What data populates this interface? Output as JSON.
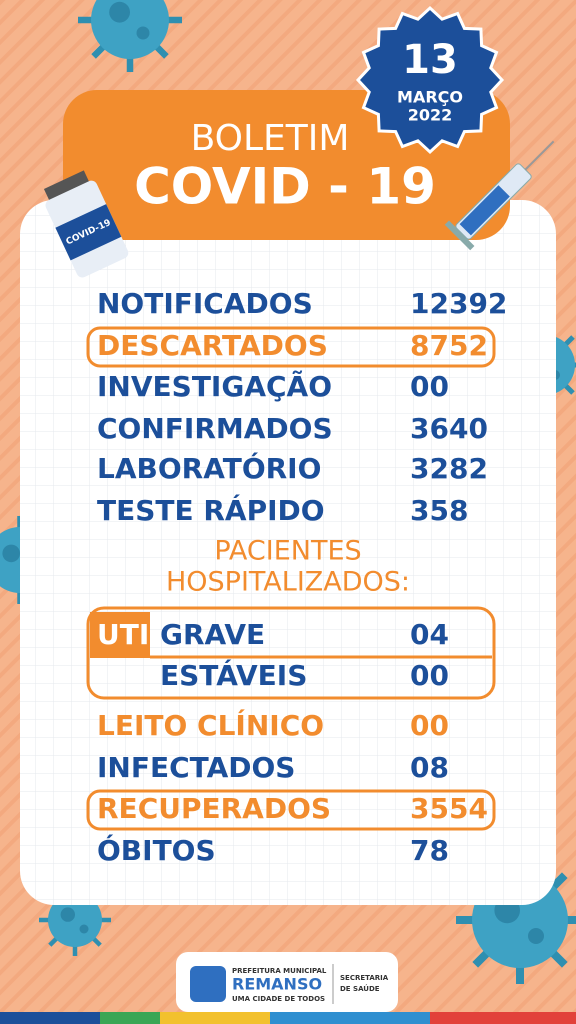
{
  "header": {
    "date_day": "13",
    "date_month": "MARÇO",
    "date_year": "2022",
    "title_line1": "BOLETIM",
    "title_line2": "COVID - 19",
    "vial_label": "COVID-19"
  },
  "rows": [
    {
      "label": "NOTIFICADOS",
      "value": "12392"
    },
    {
      "label": "DESCARTADOS",
      "value": "8752"
    },
    {
      "label": "INVESTIGAÇÃO",
      "value": "00"
    },
    {
      "label": "CONFIRMADOS",
      "value": "3640"
    },
    {
      "label": "LABORATÓRIO",
      "value": "3282"
    },
    {
      "label": "TESTE RÁPIDO",
      "value": "358"
    }
  ],
  "hospital": {
    "title_lines": [
      "PACIENTES",
      "HOSPITALIZADOS:"
    ],
    "uti_label": "UTI",
    "uti_rows": [
      {
        "label": "GRAVE",
        "value": "04"
      },
      {
        "label": "ESTÁVEIS",
        "value": "00"
      }
    ]
  },
  "rows2": [
    {
      "label": "LEITO CLÍNICO",
      "value": "00"
    },
    {
      "label": "INFECTADOS",
      "value": "08"
    },
    {
      "label": "RECUPERADOS",
      "value": "3554"
    },
    {
      "label": "ÓBITOS",
      "value": "78"
    }
  ],
  "footer": {
    "org_line1": "PREFEITURA MUNICIPAL",
    "org_name": "REMANSO",
    "org_slogan": "UMA CIDADE DE TODOS",
    "dept_line1": "SECRETARIA",
    "dept_line2": "DE SAÚDE"
  }
}
